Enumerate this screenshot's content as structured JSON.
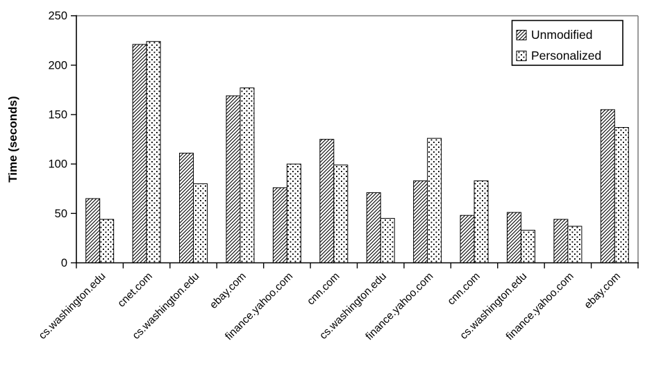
{
  "chart_data": {
    "type": "bar",
    "title": "",
    "xlabel": "",
    "ylabel": "Time (seconds)",
    "ylim": [
      0,
      250
    ],
    "yticks": [
      0,
      50,
      100,
      150,
      200,
      250
    ],
    "grid": false,
    "legend_position": "top-right",
    "categories": [
      "cs.washington.edu",
      "cnet.com",
      "cs.washington.edu",
      "ebay.com",
      "finance.yahoo.com",
      "cnn.com",
      "cs.washington.edu",
      "finance.yahoo.com",
      "cnn.com",
      "cs.washington.edu",
      "finance.yahoo.com",
      "ebay.com"
    ],
    "series": [
      {
        "name": "Unmodified",
        "pattern": "diagonal-hatch",
        "values": [
          65,
          221,
          111,
          169,
          76,
          125,
          71,
          83,
          48,
          51,
          44,
          155
        ]
      },
      {
        "name": "Personalized",
        "pattern": "dots",
        "values": [
          44,
          224,
          80,
          177,
          100,
          99,
          45,
          126,
          83,
          33,
          37,
          137
        ]
      }
    ]
  },
  "colors": {
    "background": "#ffffff",
    "bar_fill": "#ffffff",
    "bar_stroke": "#000000",
    "axis": "#000000",
    "plot_border_gray": "#808080",
    "text": "#000000"
  }
}
